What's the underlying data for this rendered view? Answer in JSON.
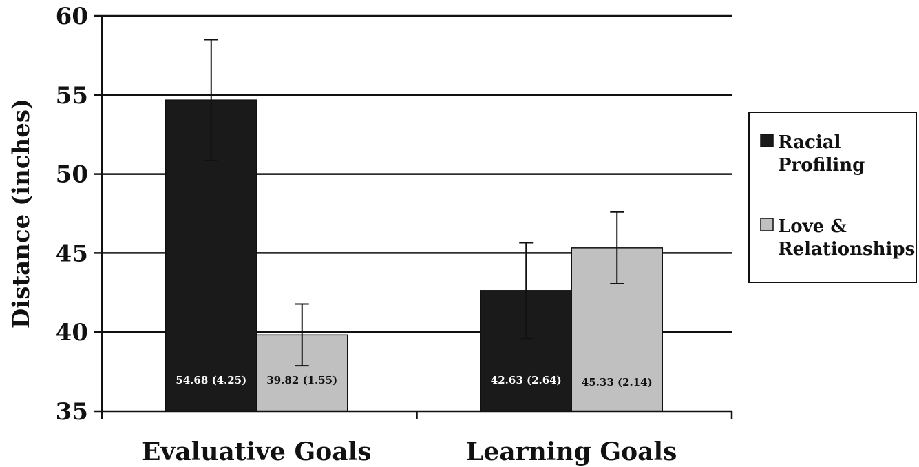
{
  "chart_data": {
    "type": "bar",
    "ylabel": "Distance (inches)",
    "xlabel": "",
    "ylim": [
      35,
      60
    ],
    "yticks": [
      35,
      40,
      45,
      50,
      55,
      60
    ],
    "grid": true,
    "legend_position": "right",
    "categories": [
      "Evaluative Goals",
      "Learning Goals"
    ],
    "series": [
      {
        "name": "Racial Profiling",
        "legend_lines": [
          "Racial",
          "Profiling"
        ],
        "color": "#1a1a1a",
        "label_color": "#ffffff",
        "values": [
          54.68,
          42.63
        ],
        "errors": [
          3.82,
          3.02
        ],
        "data_labels": [
          "54.68 (4.25)",
          "42.63 (2.64)"
        ]
      },
      {
        "name": "Love & Relationships",
        "legend_lines": [
          "Love &",
          "Relationships"
        ],
        "color": "#c0c0c0",
        "label_color": "#111111",
        "values": [
          39.82,
          45.33
        ],
        "errors": [
          1.95,
          2.27
        ],
        "data_labels": [
          "39.82 (1.55)",
          "45.33 (2.14)"
        ]
      }
    ]
  }
}
